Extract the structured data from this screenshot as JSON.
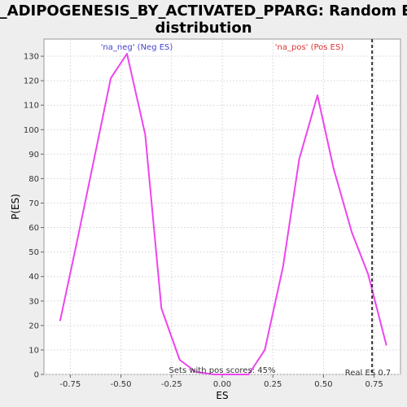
{
  "chart_data": {
    "type": "line",
    "title_lines": [
      "LI_ADIPOGENESIS_BY_ACTIVATED_PPARG: Random ES",
      "distribution"
    ],
    "xlabel": "ES",
    "ylabel": "P(ES)",
    "xlim": [
      -0.88,
      0.88
    ],
    "ylim": [
      0,
      137
    ],
    "x_ticks": [
      "-0.75",
      "-0.50",
      "-0.25",
      "0.00",
      "0.25",
      "0.50",
      "0.75"
    ],
    "x_tick_values": [
      -0.75,
      -0.5,
      -0.25,
      0.0,
      0.25,
      0.5,
      0.75
    ],
    "y_ticks": [
      "0",
      "10",
      "20",
      "30",
      "40",
      "50",
      "60",
      "70",
      "80",
      "90",
      "100",
      "110",
      "120",
      "130"
    ],
    "y_tick_values": [
      0,
      10,
      20,
      30,
      40,
      50,
      60,
      70,
      80,
      90,
      100,
      110,
      120,
      130
    ],
    "grid": true,
    "series": [
      {
        "color": "#ee44ee",
        "x": [
          -0.8,
          -0.72,
          -0.63,
          -0.55,
          -0.47,
          -0.38,
          -0.3,
          -0.21,
          -0.13,
          -0.04,
          0.04,
          0.13,
          0.21,
          0.3,
          0.38,
          0.47,
          0.55,
          0.64,
          0.72,
          0.81
        ],
        "y": [
          22,
          53,
          89,
          121,
          131,
          98,
          27,
          6,
          1,
          0,
          0,
          0,
          10,
          44,
          88,
          114,
          84,
          58,
          41,
          12
        ]
      }
    ],
    "legend": [
      {
        "label": "'na_neg' (Neg ES)",
        "color": "#4444cc",
        "position": "top-left"
      },
      {
        "label": "'na_pos' (Pos ES)",
        "color": "#dd3333",
        "position": "top-right"
      }
    ],
    "annotations": {
      "pos_scores": "Sets with pos scores: 45%",
      "real_es_label": "Real ES 0.7",
      "real_es_value": 0.74
    },
    "colors": {
      "background": "#eeeeee",
      "plot_bg": "#ffffff",
      "grid": "#dddddd",
      "series": "#ee44ee",
      "real_es_line": "#333333"
    }
  }
}
